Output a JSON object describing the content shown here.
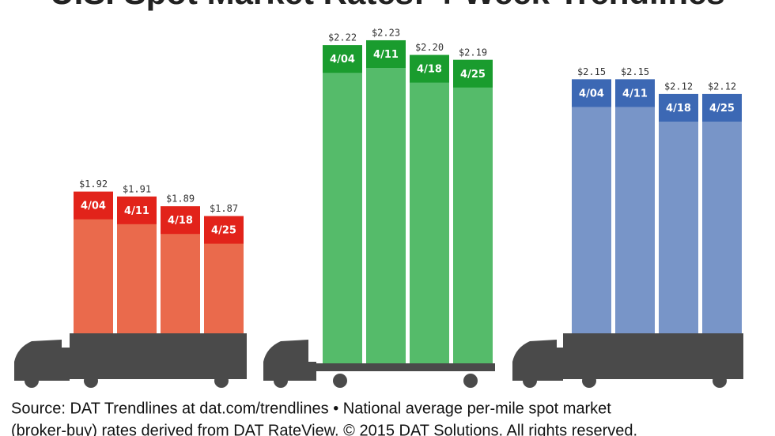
{
  "title": "U.S. Spot Market Rates: 4-Week Trendlines",
  "chart_data": [
    {
      "type": "bar",
      "categories": [
        "4/04",
        "4/11",
        "4/18",
        "4/25"
      ],
      "values": [
        1.92,
        1.91,
        1.89,
        1.87
      ],
      "value_labels": [
        "$1.92",
        "$1.91",
        "$1.89",
        "$1.87"
      ],
      "color": "#ea6a4c",
      "label_color": "#e2231a",
      "ylim": [
        1.63,
        2.28
      ]
    },
    {
      "type": "bar",
      "categories": [
        "4/04",
        "4/11",
        "4/18",
        "4/25"
      ],
      "values": [
        2.22,
        2.23,
        2.2,
        2.19
      ],
      "value_labels": [
        "$2.22",
        "$2.23",
        "$2.20",
        "$2.19"
      ],
      "color": "#55bb6a",
      "label_color": "#1a9c2e",
      "ylim": [
        1.57,
        2.28
      ]
    },
    {
      "type": "bar",
      "categories": [
        "4/04",
        "4/11",
        "4/18",
        "4/25"
      ],
      "values": [
        2.15,
        2.15,
        2.12,
        2.12
      ],
      "value_labels": [
        "$2.15",
        "$2.15",
        "$2.12",
        "$2.12"
      ],
      "color": "#7895c8",
      "label_color": "#3c68b4",
      "ylim": [
        1.63,
        2.28
      ]
    }
  ],
  "source": [
    "Source: DAT Trendlines at dat.com/trendlines • National average per-mile spot market",
    "(broker-buy) rates derived from DAT RateView. © 2015 DAT Solutions. All rights reserved."
  ]
}
